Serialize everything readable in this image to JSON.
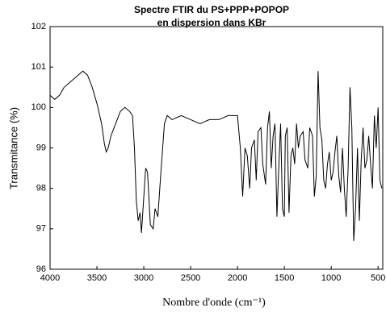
{
  "chart_data": {
    "type": "line",
    "title": "Spectre FTIR du PS+PPP+POPOP",
    "subtitle": "en dispersion dans KBr",
    "x_label": "Nombre d'onde (cm⁻¹)",
    "y_label": "Transmitance (%)",
    "xlim": [
      4000,
      450
    ],
    "ylim": [
      96,
      102
    ],
    "xticks": [
      4000,
      3500,
      3000,
      2500,
      2000,
      1500,
      1000,
      500
    ],
    "yticks": [
      96,
      97,
      98,
      99,
      100,
      101,
      102
    ],
    "series": [
      {
        "color": "#000000",
        "x": [
          4000,
          3950,
          3900,
          3850,
          3800,
          3750,
          3700,
          3650,
          3600,
          3550,
          3500,
          3450,
          3420,
          3400,
          3380,
          3350,
          3300,
          3250,
          3200,
          3150,
          3120,
          3100,
          3080,
          3060,
          3040,
          3025,
          3000,
          2980,
          2960,
          2930,
          2900,
          2880,
          2850,
          2820,
          2780,
          2750,
          2700,
          2600,
          2500,
          2400,
          2300,
          2200,
          2100,
          2050,
          2000,
          1970,
          1945,
          1920,
          1895,
          1870,
          1850,
          1820,
          1800,
          1780,
          1750,
          1730,
          1700,
          1680,
          1660,
          1640,
          1620,
          1600,
          1580,
          1560,
          1540,
          1520,
          1500,
          1490,
          1470,
          1450,
          1430,
          1410,
          1390,
          1370,
          1350,
          1330,
          1300,
          1280,
          1250,
          1230,
          1200,
          1180,
          1160,
          1140,
          1120,
          1100,
          1080,
          1060,
          1040,
          1020,
          1000,
          980,
          960,
          940,
          920,
          900,
          880,
          860,
          840,
          820,
          800,
          780,
          760,
          740,
          720,
          700,
          680,
          660,
          640,
          620,
          600,
          580,
          560,
          540,
          520,
          500,
          480,
          460
        ],
        "values": [
          100.3,
          100.2,
          100.3,
          100.5,
          100.6,
          100.7,
          100.8,
          100.9,
          100.8,
          100.5,
          100.1,
          99.6,
          99.1,
          98.9,
          99.0,
          99.3,
          99.6,
          99.9,
          100.0,
          99.9,
          99.8,
          99.0,
          97.7,
          97.2,
          97.4,
          96.9,
          97.8,
          98.5,
          98.4,
          97.1,
          97.0,
          97.5,
          97.3,
          98.3,
          99.6,
          99.8,
          99.7,
          99.8,
          99.7,
          99.6,
          99.7,
          99.7,
          99.8,
          99.8,
          99.8,
          99.0,
          97.8,
          99.0,
          98.8,
          98.0,
          99.0,
          99.2,
          98.2,
          99.4,
          99.5,
          98.6,
          98.1,
          99.5,
          99.9,
          98.5,
          99.3,
          99.6,
          97.3,
          98.5,
          99.6,
          97.5,
          97.3,
          99.3,
          99.5,
          97.4,
          98.8,
          99.0,
          98.6,
          99.6,
          99.0,
          99.3,
          99.4,
          98.7,
          98.5,
          99.5,
          99.3,
          97.8,
          98.3,
          100.9,
          99.5,
          99.2,
          98.2,
          98.0,
          98.6,
          98.9,
          98.2,
          98.4,
          98.9,
          99.3,
          98.3,
          97.9,
          99.0,
          98.0,
          97.3,
          98.5,
          100.5,
          99.5,
          96.7,
          97.5,
          99.0,
          97.2,
          98.7,
          99.5,
          98.5,
          98.7,
          99.3,
          98.6,
          98.0,
          99.8,
          99.0,
          100.0,
          98.2,
          98.0
        ]
      }
    ]
  }
}
